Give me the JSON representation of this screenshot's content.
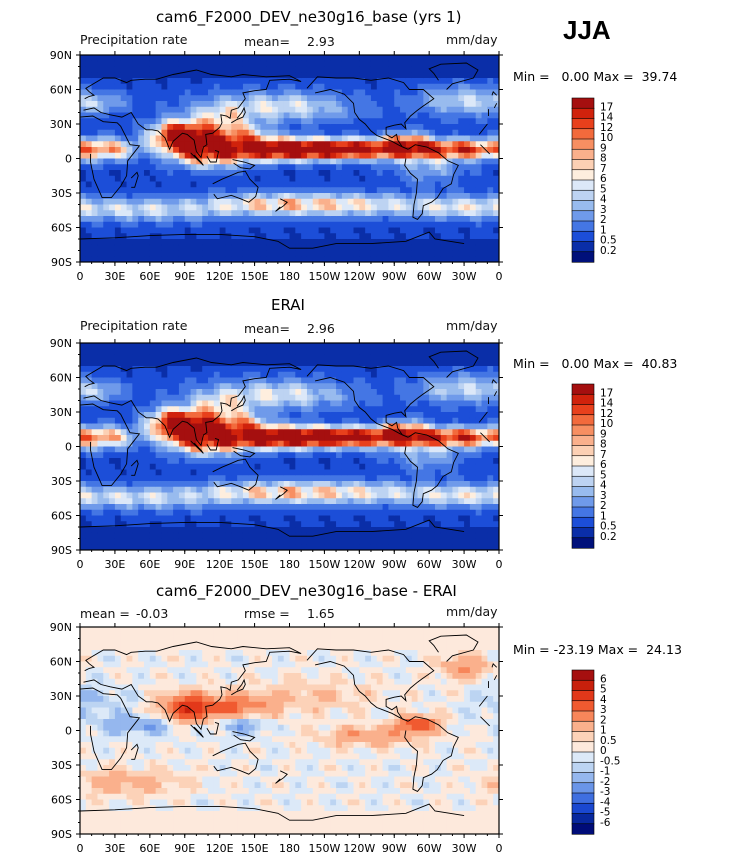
{
  "season": "JJA",
  "panels": [
    {
      "title": "cam6_F2000_DEV_ne30g16_base (yrs 1)",
      "left_label": "Precipitation rate",
      "stat1_label": "mean=",
      "stat1_value": "2.93",
      "stat2_label": "",
      "stat2_value": "",
      "units": "mm/day",
      "minmax": "Min =   0.00 Max =  39.74",
      "colorbar_labels": [
        "17",
        "14",
        "12",
        "10",
        "9",
        "8",
        "7",
        "6",
        "5",
        "4",
        "3",
        "2",
        "1",
        "0.5",
        "0.2"
      ],
      "colorbar_colors": [
        "#a50f0f",
        "#d0220c",
        "#e8401c",
        "#f26a3c",
        "#f78f62",
        "#fab08c",
        "#fcd0b4",
        "#feeede",
        "#dce8f8",
        "#bdd3f2",
        "#98bbee",
        "#6f9aea",
        "#4476e4",
        "#1c4ed8",
        "#0a2ea8",
        "#00107a"
      ]
    },
    {
      "title": "ERAI",
      "left_label": "Precipitation rate",
      "stat1_label": "mean=",
      "stat1_value": "2.96",
      "stat2_label": "",
      "stat2_value": "",
      "units": "mm/day",
      "minmax": "Min =   0.00 Max =  40.83",
      "colorbar_labels": [
        "17",
        "14",
        "12",
        "10",
        "9",
        "8",
        "7",
        "6",
        "5",
        "4",
        "3",
        "2",
        "1",
        "0.5",
        "0.2"
      ],
      "colorbar_colors": [
        "#a50f0f",
        "#d0220c",
        "#e8401c",
        "#f26a3c",
        "#f78f62",
        "#fab08c",
        "#fcd0b4",
        "#feeede",
        "#dce8f8",
        "#bdd3f2",
        "#98bbee",
        "#6f9aea",
        "#4476e4",
        "#1c4ed8",
        "#0a2ea8",
        "#00107a"
      ]
    },
    {
      "title": "cam6_F2000_DEV_ne30g16_base - ERAI",
      "left_label": "",
      "stat1_label": "mean =",
      "stat1_value": "-0.03",
      "stat2_label": "rmse =",
      "stat2_value": "1.65",
      "units": "mm/day",
      "minmax": "Min = -23.19 Max =  24.13",
      "colorbar_labels": [
        "6",
        "5",
        "4",
        "3",
        "2",
        "1",
        "0.5",
        "0",
        "-0.5",
        "-1",
        "-2",
        "-3",
        "-4",
        "-5",
        "-6"
      ],
      "colorbar_colors": [
        "#a50f0f",
        "#c8200c",
        "#e2381a",
        "#f05a30",
        "#f7865a",
        "#fab08c",
        "#fcd2b8",
        "#fde9dc",
        "#dce9f8",
        "#bcd4f2",
        "#95b7ee",
        "#6a95e8",
        "#3f6fe0",
        "#1a48d0",
        "#08289e",
        "#000c78"
      ]
    }
  ],
  "lat_ticks": [
    "90N",
    "60N",
    "30N",
    "0",
    "30S",
    "60S",
    "90S"
  ],
  "lon_ticks": [
    "0",
    "30E",
    "60E",
    "90E",
    "120E",
    "150E",
    "180",
    "150W",
    "120W",
    "90W",
    "60W",
    "30W",
    "0"
  ]
}
